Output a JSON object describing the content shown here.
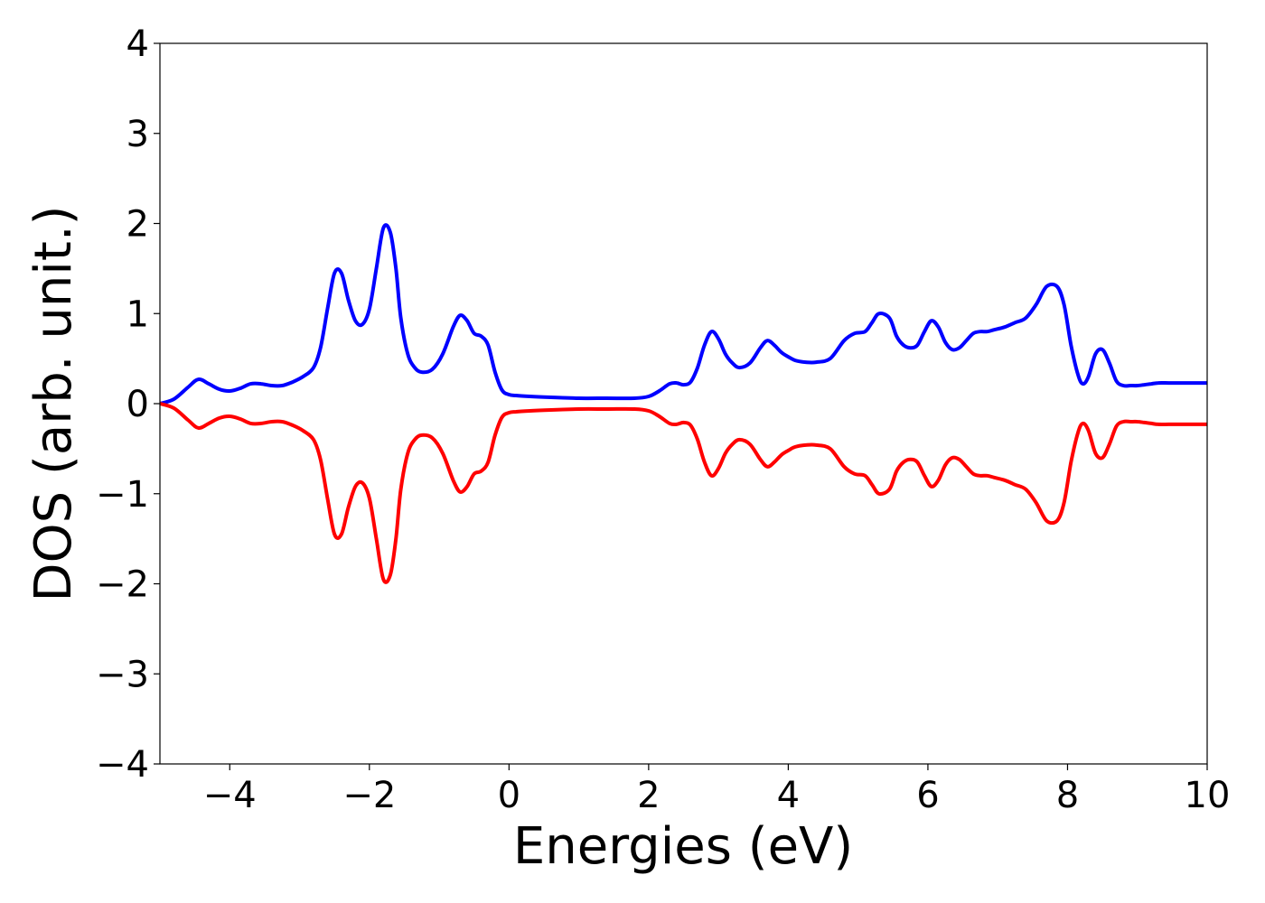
{
  "chart_data": {
    "type": "line",
    "xlabel": "Energies (eV)",
    "ylabel": "DOS (arb. unit.)",
    "xlim": [
      -5,
      10
    ],
    "ylim": [
      -4,
      4
    ],
    "xticks": [
      -4,
      -2,
      0,
      2,
      4,
      6,
      8,
      10
    ],
    "xtick_labels": [
      "−4",
      "−2",
      "0",
      "2",
      "4",
      "6",
      "8",
      "10"
    ],
    "yticks": [
      -4,
      -3,
      -2,
      -1,
      0,
      1,
      2,
      3,
      4
    ],
    "ytick_labels": [
      "−4",
      "−3",
      "−2",
      "−1",
      "0",
      "1",
      "2",
      "3",
      "4"
    ],
    "grid": false,
    "legend": false,
    "series": [
      {
        "color": "#0000ff",
        "x": [
          -5.0,
          -4.8,
          -4.6,
          -4.45,
          -4.3,
          -4.15,
          -4.0,
          -3.85,
          -3.7,
          -3.55,
          -3.4,
          -3.25,
          -3.1,
          -2.95,
          -2.8,
          -2.7,
          -2.6,
          -2.5,
          -2.4,
          -2.3,
          -2.2,
          -2.1,
          -2.0,
          -1.9,
          -1.8,
          -1.7,
          -1.62,
          -1.55,
          -1.45,
          -1.35,
          -1.25,
          -1.1,
          -0.95,
          -0.8,
          -0.7,
          -0.6,
          -0.5,
          -0.4,
          -0.3,
          -0.2,
          -0.1,
          0.0,
          0.1,
          0.3,
          0.6,
          1.0,
          1.4,
          1.8,
          2.0,
          2.15,
          2.3,
          2.4,
          2.5,
          2.6,
          2.7,
          2.8,
          2.9,
          3.0,
          3.1,
          3.2,
          3.3,
          3.45,
          3.6,
          3.7,
          3.8,
          3.9,
          4.0,
          4.1,
          4.25,
          4.4,
          4.6,
          4.8,
          4.95,
          5.1,
          5.2,
          5.3,
          5.45,
          5.55,
          5.65,
          5.75,
          5.85,
          5.95,
          6.05,
          6.15,
          6.25,
          6.35,
          6.45,
          6.55,
          6.65,
          6.75,
          6.85,
          6.95,
          7.1,
          7.25,
          7.4,
          7.55,
          7.7,
          7.85,
          7.95,
          8.05,
          8.15,
          8.22,
          8.3,
          8.4,
          8.5,
          8.6,
          8.7,
          8.8,
          8.9,
          9.0,
          9.1,
          9.2,
          9.3,
          9.45,
          9.6,
          9.8,
          10.0
        ],
        "values": [
          0.0,
          0.05,
          0.18,
          0.27,
          0.22,
          0.16,
          0.14,
          0.17,
          0.22,
          0.22,
          0.2,
          0.2,
          0.24,
          0.3,
          0.4,
          0.62,
          1.05,
          1.45,
          1.45,
          1.15,
          0.92,
          0.88,
          1.05,
          1.5,
          1.95,
          1.9,
          1.5,
          0.95,
          0.55,
          0.4,
          0.35,
          0.38,
          0.55,
          0.85,
          0.98,
          0.92,
          0.78,
          0.75,
          0.65,
          0.35,
          0.15,
          0.1,
          0.09,
          0.08,
          0.07,
          0.06,
          0.06,
          0.06,
          0.08,
          0.14,
          0.22,
          0.23,
          0.21,
          0.24,
          0.4,
          0.65,
          0.8,
          0.72,
          0.55,
          0.45,
          0.4,
          0.45,
          0.62,
          0.7,
          0.65,
          0.57,
          0.52,
          0.48,
          0.46,
          0.46,
          0.5,
          0.7,
          0.78,
          0.8,
          0.9,
          1.0,
          0.95,
          0.75,
          0.65,
          0.62,
          0.65,
          0.8,
          0.92,
          0.85,
          0.68,
          0.6,
          0.62,
          0.7,
          0.78,
          0.8,
          0.8,
          0.82,
          0.85,
          0.9,
          0.95,
          1.1,
          1.3,
          1.3,
          1.1,
          0.65,
          0.32,
          0.22,
          0.3,
          0.55,
          0.6,
          0.45,
          0.25,
          0.2,
          0.2,
          0.2,
          0.21,
          0.22,
          0.23,
          0.23,
          0.23,
          0.23,
          0.23
        ]
      },
      {
        "color": "#ff0000",
        "x": [
          -5.0,
          -4.8,
          -4.6,
          -4.45,
          -4.3,
          -4.15,
          -4.0,
          -3.85,
          -3.7,
          -3.55,
          -3.4,
          -3.25,
          -3.1,
          -2.95,
          -2.8,
          -2.7,
          -2.6,
          -2.5,
          -2.4,
          -2.3,
          -2.2,
          -2.1,
          -2.0,
          -1.9,
          -1.8,
          -1.7,
          -1.62,
          -1.55,
          -1.45,
          -1.35,
          -1.25,
          -1.1,
          -0.95,
          -0.8,
          -0.7,
          -0.6,
          -0.5,
          -0.4,
          -0.3,
          -0.2,
          -0.1,
          0.0,
          0.1,
          0.3,
          0.6,
          1.0,
          1.4,
          1.8,
          2.0,
          2.15,
          2.3,
          2.4,
          2.5,
          2.6,
          2.7,
          2.8,
          2.9,
          3.0,
          3.1,
          3.2,
          3.3,
          3.45,
          3.6,
          3.7,
          3.8,
          3.9,
          4.0,
          4.1,
          4.25,
          4.4,
          4.6,
          4.8,
          4.95,
          5.1,
          5.2,
          5.3,
          5.45,
          5.55,
          5.65,
          5.75,
          5.85,
          5.95,
          6.05,
          6.15,
          6.25,
          6.35,
          6.45,
          6.55,
          6.65,
          6.75,
          6.85,
          6.95,
          7.1,
          7.25,
          7.4,
          7.55,
          7.7,
          7.85,
          7.95,
          8.05,
          8.15,
          8.22,
          8.3,
          8.4,
          8.5,
          8.6,
          8.7,
          8.8,
          8.9,
          9.0,
          9.1,
          9.2,
          9.3,
          9.45,
          9.6,
          9.8,
          10.0
        ],
        "values": [
          0.0,
          -0.05,
          -0.18,
          -0.27,
          -0.22,
          -0.16,
          -0.14,
          -0.17,
          -0.22,
          -0.22,
          -0.2,
          -0.2,
          -0.24,
          -0.3,
          -0.4,
          -0.62,
          -1.05,
          -1.45,
          -1.45,
          -1.15,
          -0.92,
          -0.88,
          -1.05,
          -1.5,
          -1.95,
          -1.9,
          -1.5,
          -0.95,
          -0.55,
          -0.4,
          -0.35,
          -0.38,
          -0.55,
          -0.85,
          -0.98,
          -0.92,
          -0.78,
          -0.75,
          -0.65,
          -0.35,
          -0.15,
          -0.1,
          -0.09,
          -0.08,
          -0.07,
          -0.06,
          -0.06,
          -0.06,
          -0.08,
          -0.14,
          -0.22,
          -0.23,
          -0.21,
          -0.24,
          -0.4,
          -0.65,
          -0.8,
          -0.72,
          -0.55,
          -0.45,
          -0.4,
          -0.45,
          -0.62,
          -0.7,
          -0.65,
          -0.57,
          -0.52,
          -0.48,
          -0.46,
          -0.46,
          -0.5,
          -0.7,
          -0.78,
          -0.8,
          -0.9,
          -1.0,
          -0.95,
          -0.75,
          -0.65,
          -0.62,
          -0.65,
          -0.8,
          -0.92,
          -0.85,
          -0.68,
          -0.6,
          -0.62,
          -0.7,
          -0.78,
          -0.8,
          -0.8,
          -0.82,
          -0.85,
          -0.9,
          -0.95,
          -1.1,
          -1.3,
          -1.3,
          -1.1,
          -0.65,
          -0.32,
          -0.22,
          -0.3,
          -0.55,
          -0.6,
          -0.45,
          -0.25,
          -0.2,
          -0.2,
          -0.2,
          -0.21,
          -0.22,
          -0.23,
          -0.23,
          -0.23,
          -0.23,
          -0.23
        ]
      }
    ]
  }
}
